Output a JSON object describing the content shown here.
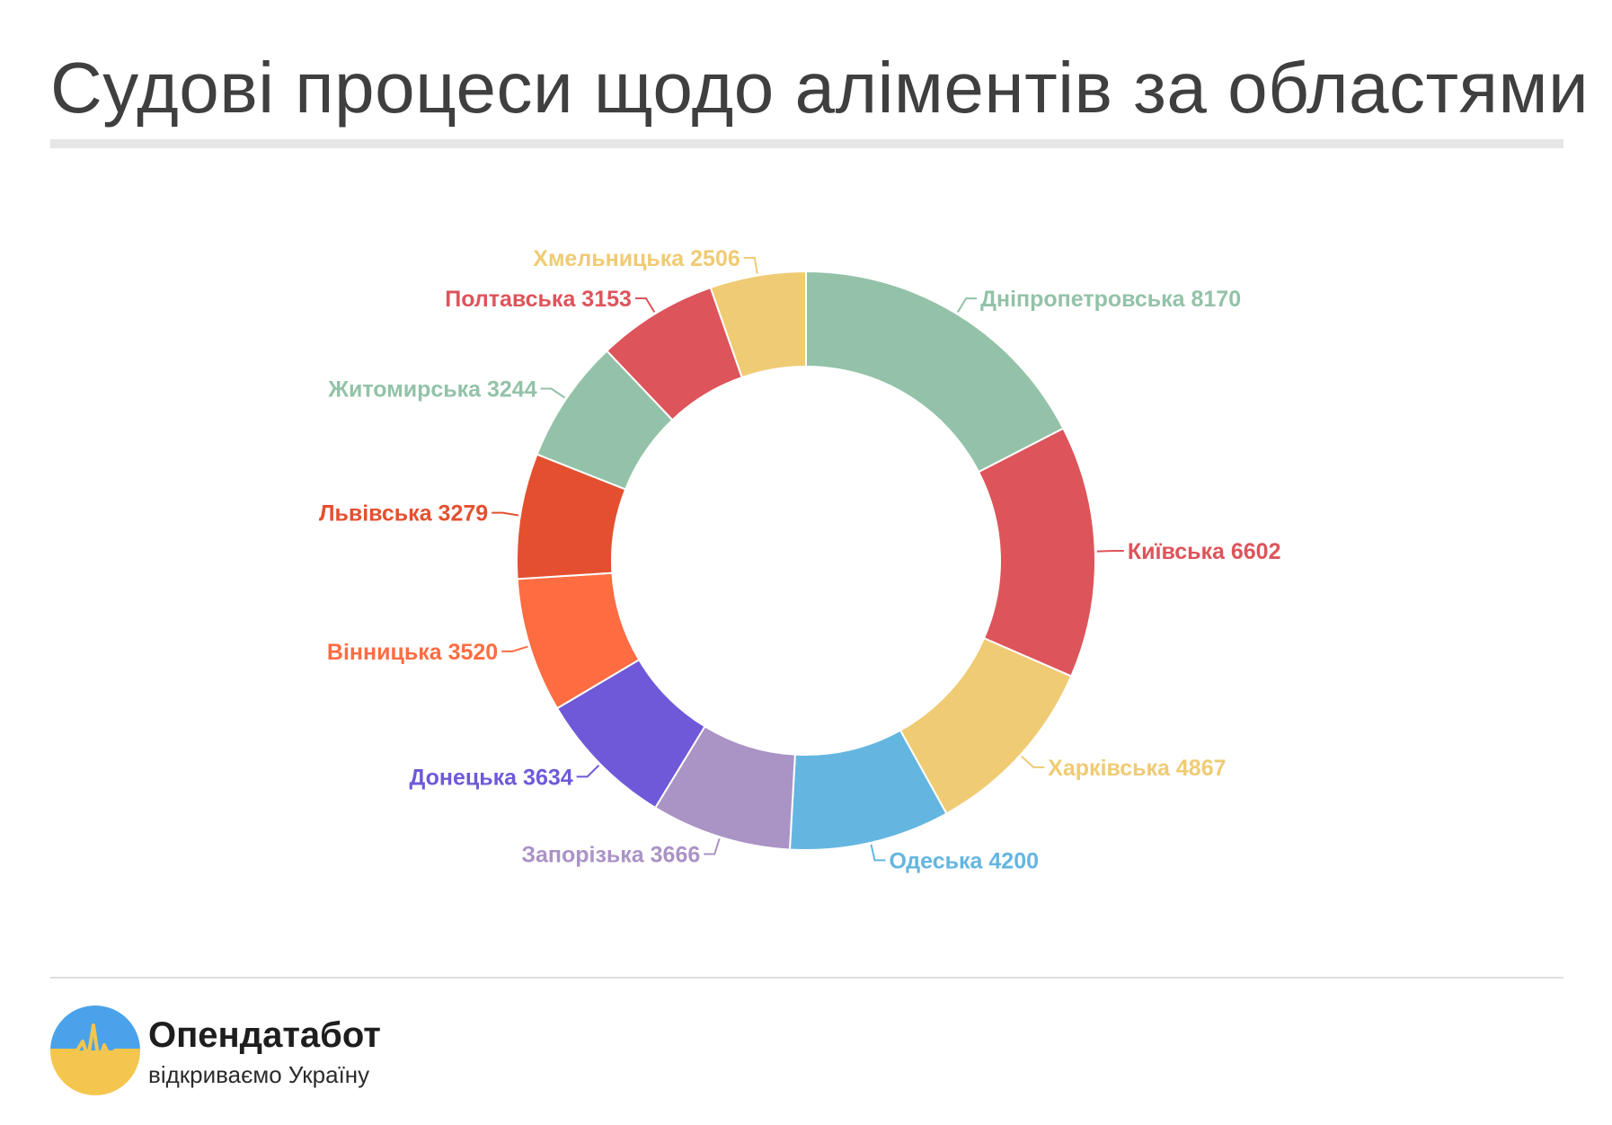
{
  "title": "Судові процеси щодо аліментів за областями",
  "chart_data": {
    "type": "pie",
    "variant": "donut",
    "series": [
      {
        "label": "Дніпропетровська",
        "value": 8170,
        "color": "#93c2a8"
      },
      {
        "label": "Київська",
        "value": 6602,
        "color": "#dd545b"
      },
      {
        "label": "Харківська",
        "value": 4867,
        "color": "#efcb74"
      },
      {
        "label": "Одеська",
        "value": 4200,
        "color": "#64b6e1"
      },
      {
        "label": "Запорізька",
        "value": 3666,
        "color": "#aa93c5"
      },
      {
        "label": "Донецька",
        "value": 3634,
        "color": "#6f59d9"
      },
      {
        "label": "Вінницька",
        "value": 3520,
        "color": "#fe6c42"
      },
      {
        "label": "Львівська",
        "value": 3279,
        "color": "#e4502f"
      },
      {
        "label": "Житомирська",
        "value": 3244,
        "color": "#93c2a8"
      },
      {
        "label": "Полтавська",
        "value": 3153,
        "color": "#dd545b"
      },
      {
        "label": "Хмельницька",
        "value": 2506,
        "color": "#efcb74"
      }
    ]
  },
  "brand": {
    "name": "Опендатабот",
    "tagline": "відкриваємо Україну",
    "logo_top_color": "#4aa3ea",
    "logo_bottom_color": "#f4c64e"
  }
}
